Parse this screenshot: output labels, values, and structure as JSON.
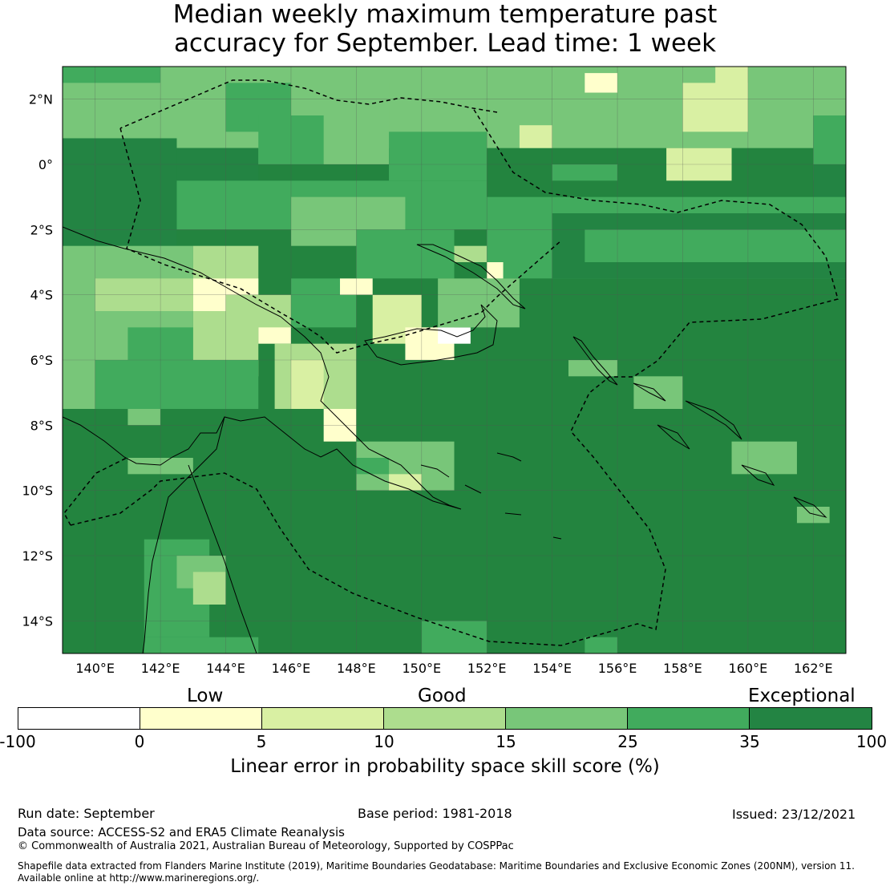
{
  "title": {
    "line1": "Median weekly maximum temperature past",
    "line2": "accuracy for September. Lead time: 1 week"
  },
  "map": {
    "lat_labels": [
      "2°N",
      "0°",
      "2°S",
      "4°S",
      "6°S",
      "8°S",
      "10°S",
      "12°S",
      "14°S"
    ],
    "lon_labels": [
      "140°E",
      "142°E",
      "144°E",
      "146°E",
      "148°E",
      "150°E",
      "152°E",
      "154°E",
      "156°E",
      "158°E",
      "160°E",
      "162°E"
    ],
    "extent": {
      "lon_min": 139,
      "lon_max": 163,
      "lat_min": -15,
      "lat_max": 3
    },
    "background_class_color": "#23843f"
  },
  "legend": {
    "categories": [
      "Low",
      "Good",
      "Exceptional"
    ],
    "ticks": [
      "-100",
      "0",
      "5",
      "10",
      "15",
      "25",
      "35",
      "100"
    ],
    "colors": [
      "#ffffff",
      "#ffffcc",
      "#d9f0a3",
      "#addd8e",
      "#78c679",
      "#41ab5d",
      "#238443"
    ],
    "title": "Linear error in probability space skill score (%)"
  },
  "footer": {
    "run_date": "Run date: September",
    "base_period": "Base period: 1981-2018",
    "issued": "Issued: 23/12/2021",
    "data_source": "Data source: ACCESS-S2 and ERA5 Climate Reanalysis",
    "copyright": "© Commonwealth of Australia 2021, Australian Bureau of Meteorology, Supported by COSPPac",
    "shapefile_line1": "Shapefile data extracted from Flanders Marine Institute (2019), Maritime Boundaries Geodatabase: Maritime Boundaries and Exclusive Economic Zones (200NM), version 11.",
    "shapefile_line2": "Available online at http://www.marineregions.org/."
  }
}
